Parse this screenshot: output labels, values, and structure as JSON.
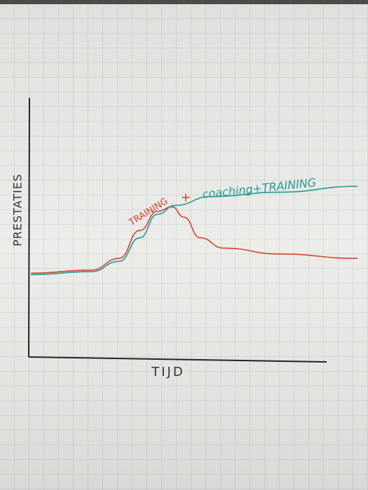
{
  "chart_data": {
    "type": "line",
    "x_label": "TIJD",
    "y_label": "PRESTATIES",
    "annotation": "+",
    "xlim": [
      0,
      20.2
    ],
    "ylim": [
      0,
      17.6
    ],
    "series": [
      {
        "name": "TRAINING",
        "color": "#d2442f",
        "x": [
          0.1,
          4.2,
          6.1,
          7.5,
          8.7,
          9.7,
          10.5,
          11.6,
          13.2,
          17.0,
          22.3
        ],
        "values": [
          5.7,
          5.9,
          6.7,
          8.6,
          9.9,
          10.2,
          9.5,
          8.1,
          7.4,
          7.0,
          6.7
        ]
      },
      {
        "name": "coaching+TRAINING",
        "color": "#1f9a95",
        "x": [
          0.1,
          4.2,
          6.1,
          7.5,
          8.7,
          9.9,
          12.3,
          17.0,
          22.3
        ],
        "values": [
          5.6,
          5.8,
          6.5,
          8.1,
          9.7,
          10.3,
          10.9,
          11.2,
          11.6
        ]
      }
    ]
  }
}
